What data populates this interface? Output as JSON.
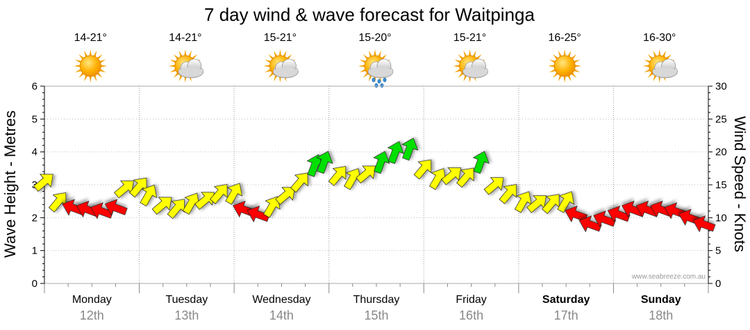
{
  "chart_data": {
    "type": "line",
    "title": "7 day wind & wave forecast for Waitpinga",
    "ylabel": "Wave Height - Metres",
    "y2label": "Wind Speed - Knots",
    "ylim": [
      0,
      6
    ],
    "y2lim": [
      0,
      30
    ],
    "yticks": [
      "0",
      "1",
      "2",
      "3",
      "4",
      "5",
      "6"
    ],
    "y2ticks": [
      "0",
      "5",
      "10",
      "15",
      "20",
      "25",
      "30"
    ],
    "credit": "www.seabreeze.com.au",
    "days": [
      {
        "name": "Monday",
        "date": "12th",
        "temp": "14-21°",
        "icon": "sun-icon",
        "weekend": false
      },
      {
        "name": "Tuesday",
        "date": "13th",
        "temp": "14-21°",
        "icon": "partly-cloudy-icon",
        "weekend": false
      },
      {
        "name": "Wednesday",
        "date": "14th",
        "temp": "15-21°",
        "icon": "partly-cloudy-icon",
        "weekend": false
      },
      {
        "name": "Thursday",
        "date": "15th",
        "temp": "15-20°",
        "icon": "rain-icon",
        "weekend": false
      },
      {
        "name": "Friday",
        "date": "16th",
        "temp": "15-21°",
        "icon": "partly-cloudy-icon",
        "weekend": false
      },
      {
        "name": "Saturday",
        "date": "17th",
        "temp": "16-25°",
        "icon": "sun-icon",
        "weekend": true
      },
      {
        "name": "Sunday",
        "date": "18th",
        "temp": "16-30°",
        "icon": "partly-cloudy-icon",
        "weekend": true
      }
    ],
    "colors": {
      "light": "#ffff00",
      "moderate": "#00e000",
      "offshore": "#ff0000",
      "grid": "#aaaaaa"
    },
    "series": [
      {
        "values": [
          [
            0.0,
            3.1,
            "yellow"
          ],
          [
            0.15,
            2.5,
            "yellow"
          ],
          [
            0.3,
            2.3,
            "red"
          ],
          [
            0.45,
            2.25,
            "red"
          ],
          [
            0.6,
            2.2,
            "red"
          ],
          [
            0.75,
            2.3,
            "red"
          ],
          [
            0.85,
            2.9,
            "yellow"
          ],
          [
            1.0,
            2.95,
            "yellow"
          ],
          [
            1.1,
            2.7,
            "yellow"
          ],
          [
            1.25,
            2.4,
            "yellow"
          ],
          [
            1.4,
            2.3,
            "yellow"
          ],
          [
            1.55,
            2.45,
            "yellow"
          ],
          [
            1.7,
            2.55,
            "yellow"
          ],
          [
            1.85,
            2.75,
            "yellow"
          ],
          [
            2.0,
            2.75,
            "yellow"
          ],
          [
            2.1,
            2.25,
            "red"
          ],
          [
            2.25,
            2.1,
            "red"
          ],
          [
            2.4,
            2.35,
            "yellow"
          ],
          [
            2.55,
            2.7,
            "yellow"
          ],
          [
            2.7,
            3.1,
            "yellow"
          ],
          [
            2.85,
            3.6,
            "moderate"
          ],
          [
            2.95,
            3.7,
            "moderate"
          ],
          [
            3.1,
            3.3,
            "yellow"
          ],
          [
            3.25,
            3.2,
            "yellow"
          ],
          [
            3.4,
            3.35,
            "yellow"
          ],
          [
            3.55,
            3.7,
            "moderate"
          ],
          [
            3.7,
            4.0,
            "moderate"
          ],
          [
            3.85,
            4.1,
            "moderate"
          ],
          [
            4.0,
            3.5,
            "yellow"
          ],
          [
            4.15,
            3.2,
            "yellow"
          ],
          [
            4.3,
            3.3,
            "yellow"
          ],
          [
            4.45,
            3.25,
            "yellow"
          ],
          [
            4.6,
            3.7,
            "moderate"
          ],
          [
            4.75,
            3.0,
            "yellow"
          ],
          [
            4.9,
            2.75,
            "yellow"
          ],
          [
            5.05,
            2.5,
            "yellow"
          ],
          [
            5.2,
            2.45,
            "yellow"
          ],
          [
            5.35,
            2.45,
            "yellow"
          ],
          [
            5.5,
            2.5,
            "yellow"
          ],
          [
            5.6,
            2.1,
            "red"
          ],
          [
            5.75,
            1.8,
            "red"
          ],
          [
            5.9,
            1.95,
            "red"
          ],
          [
            6.05,
            2.1,
            "red"
          ],
          [
            6.2,
            2.25,
            "red"
          ],
          [
            6.35,
            2.25,
            "red"
          ],
          [
            6.5,
            2.25,
            "red"
          ],
          [
            6.65,
            2.2,
            "red"
          ],
          [
            6.8,
            2.0,
            "red"
          ],
          [
            6.95,
            1.8,
            "red"
          ]
        ]
      }
    ]
  }
}
